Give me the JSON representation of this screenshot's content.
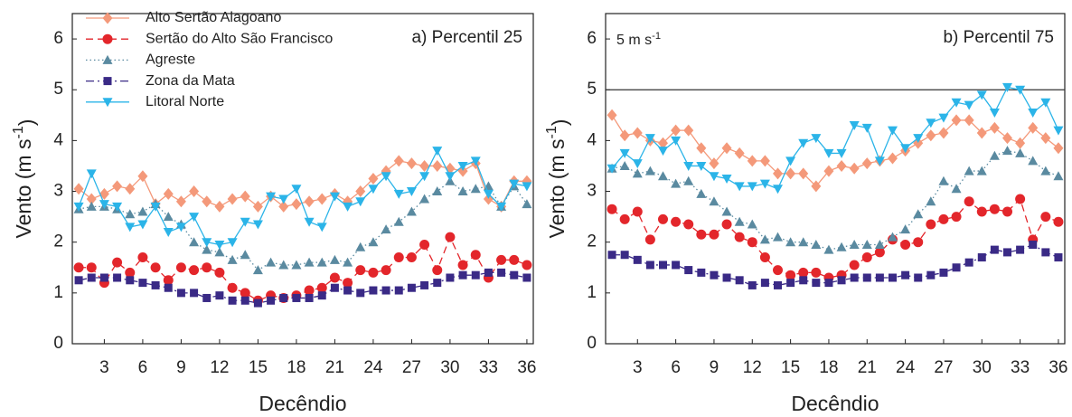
{
  "chart_data": [
    {
      "type": "line",
      "panel_label": "a) Percentil 25",
      "xlabel": "Decêndio",
      "ylabel": {
        "text": "Vento (m s",
        "sup": "-1",
        "end": ")"
      },
      "x": [
        1,
        2,
        3,
        4,
        5,
        6,
        7,
        8,
        9,
        10,
        11,
        12,
        13,
        14,
        15,
        16,
        17,
        18,
        19,
        20,
        21,
        22,
        23,
        24,
        25,
        26,
        27,
        28,
        29,
        30,
        31,
        32,
        33,
        34,
        35,
        36
      ],
      "xlim": [
        0.5,
        36.5
      ],
      "xticks": [
        3,
        6,
        9,
        12,
        15,
        18,
        21,
        24,
        27,
        30,
        33,
        36
      ],
      "ylim": [
        0,
        6.5
      ],
      "yticks": [
        0,
        1,
        2,
        3,
        4,
        5,
        6
      ],
      "legend": "top-left",
      "series": [
        {
          "name": "Alto Sertão Alagoano",
          "color": "#f4997a",
          "marker": "diamond",
          "dash": "solid",
          "values": [
            3.05,
            2.85,
            2.95,
            3.1,
            3.05,
            3.3,
            2.75,
            2.95,
            2.8,
            3.0,
            2.8,
            2.7,
            2.85,
            2.9,
            2.7,
            2.9,
            2.7,
            2.75,
            2.8,
            2.85,
            2.95,
            2.8,
            3.0,
            3.25,
            3.4,
            3.6,
            3.55,
            3.5,
            3.5,
            3.45,
            3.4,
            3.55,
            2.85,
            2.7,
            3.2,
            3.2
          ]
        },
        {
          "name": "Sertão do Alto São Francisco",
          "color": "#e3262b",
          "marker": "circle",
          "dash": "dashed",
          "values": [
            1.5,
            1.5,
            1.2,
            1.6,
            1.4,
            1.7,
            1.5,
            1.25,
            1.5,
            1.45,
            1.5,
            1.4,
            1.1,
            1.0,
            0.85,
            0.95,
            0.9,
            0.95,
            1.05,
            1.1,
            1.3,
            1.2,
            1.45,
            1.4,
            1.45,
            1.7,
            1.7,
            1.95,
            1.45,
            2.1,
            1.55,
            1.75,
            1.3,
            1.65,
            1.65,
            1.55
          ]
        },
        {
          "name": "Agreste",
          "color": "#5a8aa0",
          "marker": "triangle-up",
          "dash": "dotted",
          "values": [
            2.65,
            2.7,
            2.7,
            2.65,
            2.55,
            2.6,
            2.75,
            2.5,
            2.35,
            2.0,
            1.85,
            1.8,
            1.65,
            1.75,
            1.45,
            1.6,
            1.55,
            1.55,
            1.6,
            1.6,
            1.65,
            1.6,
            1.9,
            2.0,
            2.25,
            2.4,
            2.6,
            2.85,
            3.0,
            3.2,
            3.0,
            3.05,
            3.1,
            2.7,
            3.1,
            2.75
          ]
        },
        {
          "name": "Zona da Mata",
          "color": "#3a2a86",
          "marker": "square",
          "dash": "dashdot",
          "values": [
            1.25,
            1.3,
            1.3,
            1.3,
            1.25,
            1.2,
            1.15,
            1.1,
            1.0,
            1.0,
            0.9,
            0.95,
            0.85,
            0.85,
            0.8,
            0.85,
            0.9,
            0.9,
            0.9,
            0.95,
            1.1,
            1.05,
            1.0,
            1.05,
            1.05,
            1.05,
            1.1,
            1.15,
            1.2,
            1.3,
            1.35,
            1.35,
            1.4,
            1.4,
            1.35,
            1.3
          ]
        },
        {
          "name": "Litoral Norte",
          "color": "#2bb4e8",
          "marker": "triangle-down",
          "dash": "solid",
          "values": [
            2.7,
            3.35,
            2.75,
            2.7,
            2.3,
            2.35,
            2.7,
            2.2,
            2.3,
            2.5,
            2.0,
            1.95,
            2.0,
            2.4,
            2.35,
            2.9,
            2.85,
            3.05,
            2.4,
            2.3,
            2.9,
            2.7,
            2.8,
            3.05,
            3.3,
            2.95,
            3.0,
            3.3,
            3.8,
            3.3,
            3.5,
            3.6,
            2.95,
            2.7,
            3.15,
            3.1
          ]
        }
      ]
    },
    {
      "type": "line",
      "panel_label": "b) Percentil 75",
      "xlabel": "Decêndio",
      "ylabel": {
        "text": "Vento (m s",
        "sup": "-1",
        "end": ")"
      },
      "reference_line": {
        "value": 5,
        "label": "5 m s",
        "sup": "-1"
      },
      "x": [
        1,
        2,
        3,
        4,
        5,
        6,
        7,
        8,
        9,
        10,
        11,
        12,
        13,
        14,
        15,
        16,
        17,
        18,
        19,
        20,
        21,
        22,
        23,
        24,
        25,
        26,
        27,
        28,
        29,
        30,
        31,
        32,
        33,
        34,
        35,
        36
      ],
      "xlim": [
        0.5,
        36.5
      ],
      "xticks": [
        3,
        6,
        9,
        12,
        15,
        18,
        21,
        24,
        27,
        30,
        33,
        36
      ],
      "ylim": [
        0,
        6.5
      ],
      "yticks": [
        0,
        1,
        2,
        3,
        4,
        5,
        6
      ],
      "series": [
        {
          "color": "#f4997a",
          "marker": "diamond",
          "dash": "solid",
          "values": [
            4.5,
            4.1,
            4.15,
            4.0,
            3.95,
            4.2,
            4.2,
            3.85,
            3.55,
            3.85,
            3.75,
            3.6,
            3.6,
            3.35,
            3.35,
            3.35,
            3.1,
            3.4,
            3.5,
            3.45,
            3.55,
            3.6,
            3.65,
            3.8,
            3.95,
            4.1,
            4.15,
            4.4,
            4.4,
            4.15,
            4.25,
            4.05,
            3.95,
            4.25,
            4.05,
            3.85
          ]
        },
        {
          "color": "#e3262b",
          "marker": "circle",
          "dash": "dashed",
          "values": [
            2.65,
            2.45,
            2.6,
            2.05,
            2.45,
            2.4,
            2.35,
            2.15,
            2.15,
            2.35,
            2.1,
            2.0,
            1.7,
            1.45,
            1.35,
            1.4,
            1.4,
            1.3,
            1.35,
            1.55,
            1.7,
            1.8,
            2.05,
            1.95,
            2.0,
            2.35,
            2.45,
            2.5,
            2.8,
            2.6,
            2.65,
            2.6,
            2.85,
            2.05,
            2.5,
            2.4
          ]
        },
        {
          "color": "#5a8aa0",
          "marker": "triangle-up",
          "dash": "dotted",
          "values": [
            3.45,
            3.5,
            3.35,
            3.4,
            3.3,
            3.15,
            3.2,
            2.95,
            2.8,
            2.6,
            2.4,
            2.35,
            2.05,
            2.1,
            2.0,
            2.0,
            1.95,
            1.85,
            1.9,
            1.95,
            1.95,
            1.95,
            2.1,
            2.25,
            2.55,
            2.8,
            3.2,
            3.05,
            3.4,
            3.4,
            3.7,
            3.8,
            3.75,
            3.6,
            3.4,
            3.3
          ]
        },
        {
          "color": "#3a2a86",
          "marker": "square",
          "dash": "dashdot",
          "values": [
            1.75,
            1.75,
            1.65,
            1.55,
            1.55,
            1.55,
            1.45,
            1.4,
            1.35,
            1.3,
            1.25,
            1.15,
            1.2,
            1.15,
            1.2,
            1.25,
            1.2,
            1.2,
            1.25,
            1.3,
            1.3,
            1.3,
            1.3,
            1.35,
            1.3,
            1.35,
            1.4,
            1.5,
            1.6,
            1.7,
            1.85,
            1.8,
            1.85,
            1.95,
            1.8,
            1.7
          ]
        },
        {
          "color": "#2bb4e8",
          "marker": "triangle-down",
          "dash": "solid",
          "values": [
            3.45,
            3.75,
            3.55,
            4.05,
            3.8,
            4.0,
            3.5,
            3.5,
            3.3,
            3.25,
            3.1,
            3.1,
            3.15,
            3.05,
            3.6,
            3.95,
            4.05,
            3.75,
            3.75,
            4.3,
            4.25,
            3.6,
            4.2,
            3.85,
            4.05,
            4.35,
            4.45,
            4.75,
            4.7,
            4.9,
            4.55,
            5.05,
            5.0,
            4.55,
            4.75,
            4.2
          ]
        }
      ]
    }
  ]
}
